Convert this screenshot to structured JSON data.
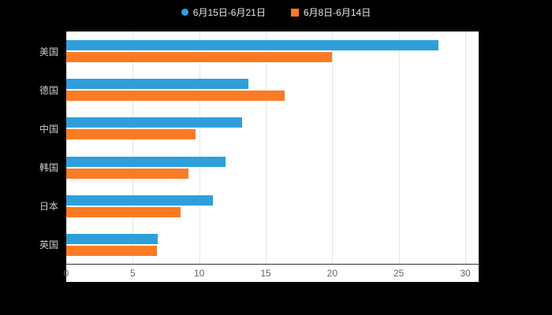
{
  "legend": {
    "items": [
      {
        "label": "6月15日-6月21日",
        "color": "#2f9fdc",
        "shape": "circle"
      },
      {
        "label": "6月8日-6月14日",
        "color": "#fb7b25",
        "shape": "square"
      }
    ]
  },
  "chart_data": {
    "type": "bar",
    "orientation": "horizontal",
    "title": "",
    "xlabel": "",
    "ylabel": "",
    "categories": [
      "美国",
      "德国",
      "中国",
      "韩国",
      "日本",
      "英国"
    ],
    "series": [
      {
        "name": "6月15日-6月21日",
        "color": "#2f9fdc",
        "values": [
          28,
          13.7,
          13.2,
          12,
          11,
          6.9
        ]
      },
      {
        "name": "6月8日-6月14日",
        "color": "#fb7b25",
        "values": [
          20,
          16.4,
          9.7,
          9.2,
          8.6,
          6.8
        ]
      }
    ],
    "xlim": [
      0,
      30
    ],
    "x_ticks": [
      0,
      5,
      10,
      15,
      20,
      25,
      30
    ],
    "grid": true,
    "legend_position": "top"
  },
  "colors": {
    "background": "#000000",
    "plot_background": "#ffffff",
    "gridline": "#e6e6e6",
    "axis_line": "#333333",
    "tick_label": "#666666",
    "category_label": "#cccccc",
    "legend_text": "#e6e6e6"
  }
}
